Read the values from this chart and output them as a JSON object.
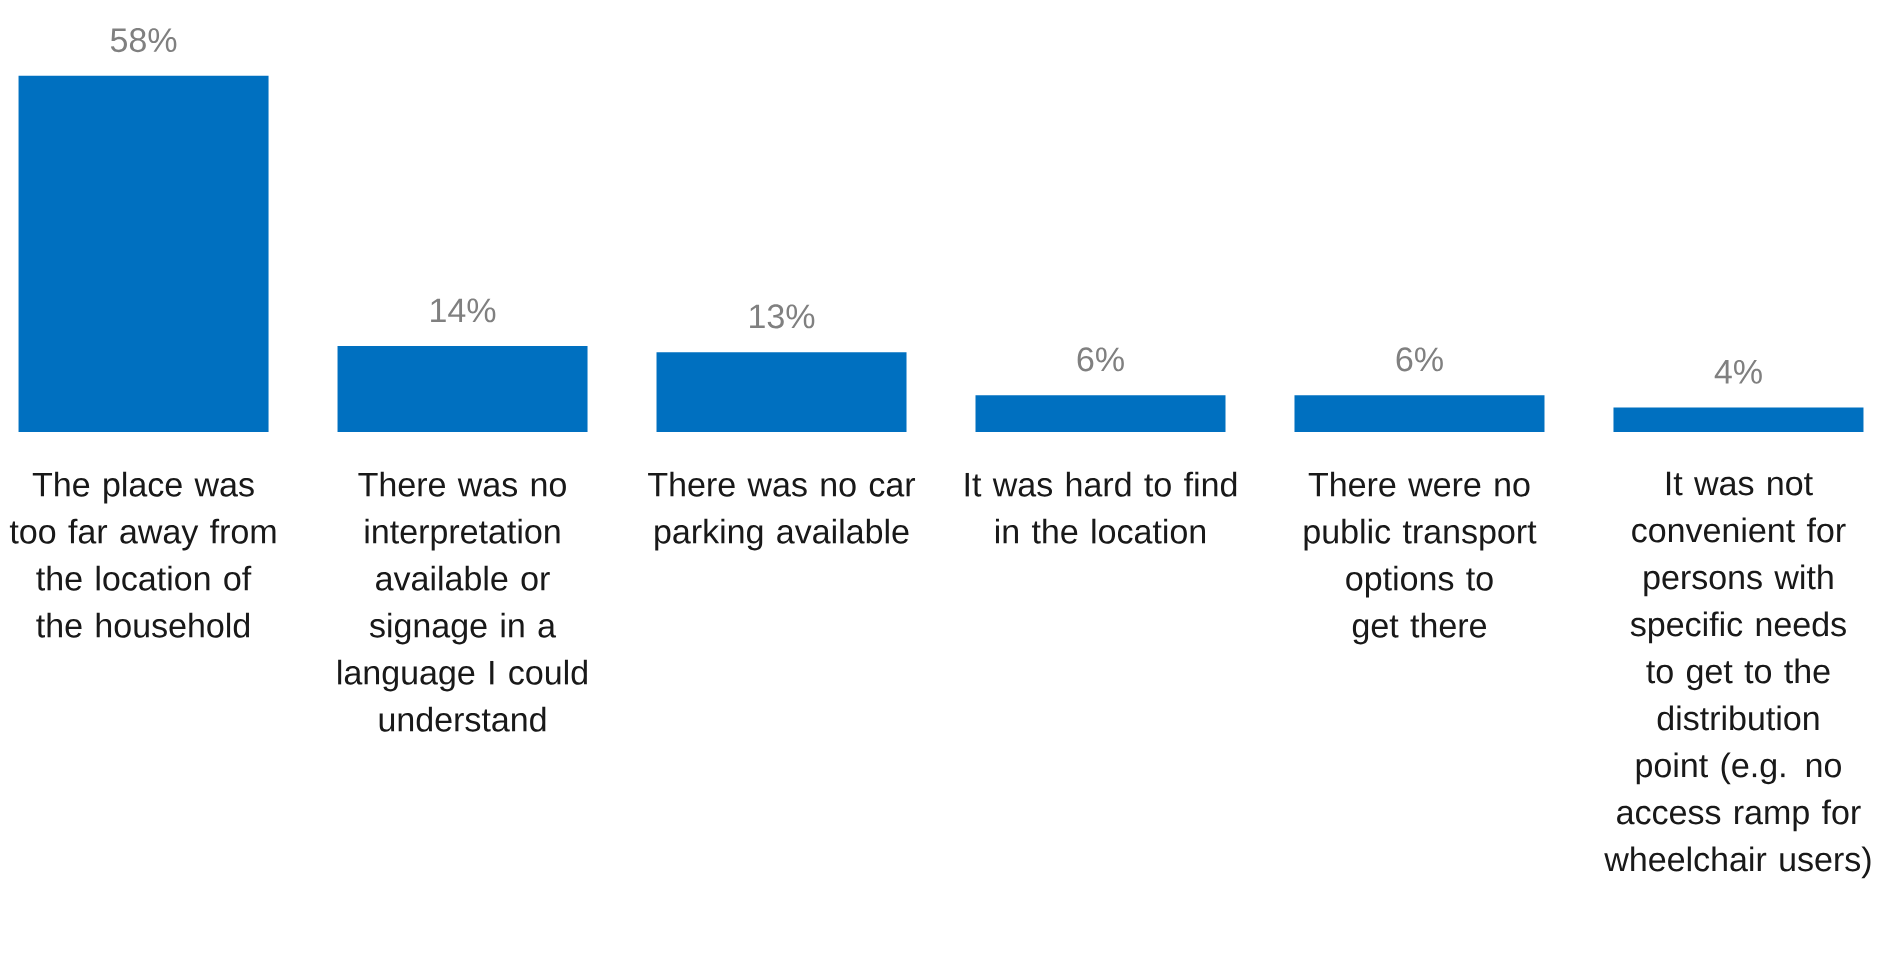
{
  "chart_data": {
    "type": "bar",
    "categories": [
      "The place was too far away from the location of the household",
      "There was no interpretation available or signage in a language I could understand",
      "There was no car parking available",
      "It was hard to find in the location",
      "There were no public transport options to get there",
      "It was not convenient for persons with specific needs to get to the distribution point (e.g. no access ramp for wheelchair users)"
    ],
    "values": [
      58,
      14,
      13,
      6,
      6,
      4
    ],
    "color": "#0070c0",
    "value_labels": [
      "58%",
      "14%",
      "13%",
      "6%",
      "6%",
      "4%"
    ]
  }
}
